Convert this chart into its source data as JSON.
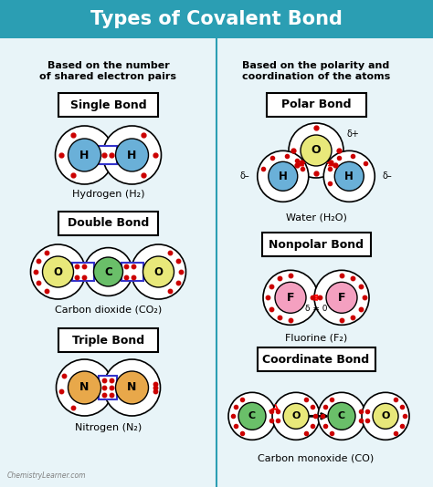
{
  "title": "Types of Covalent Bond",
  "title_bg": "#2b9eb3",
  "title_color": "white",
  "bg_color": "#e8f4f8",
  "left_header": "Based on the number\nof shared electron pairs",
  "right_header": "Based on the polarity and\ncoordination of the atoms",
  "divider_color": "#2b9eb3",
  "electron_color": "#cc0000",
  "bond_box_color": "#3333cc",
  "watermark": "ChemistryLearner.com",
  "fig_w": 4.74,
  "fig_h": 5.34,
  "dpi": 100
}
